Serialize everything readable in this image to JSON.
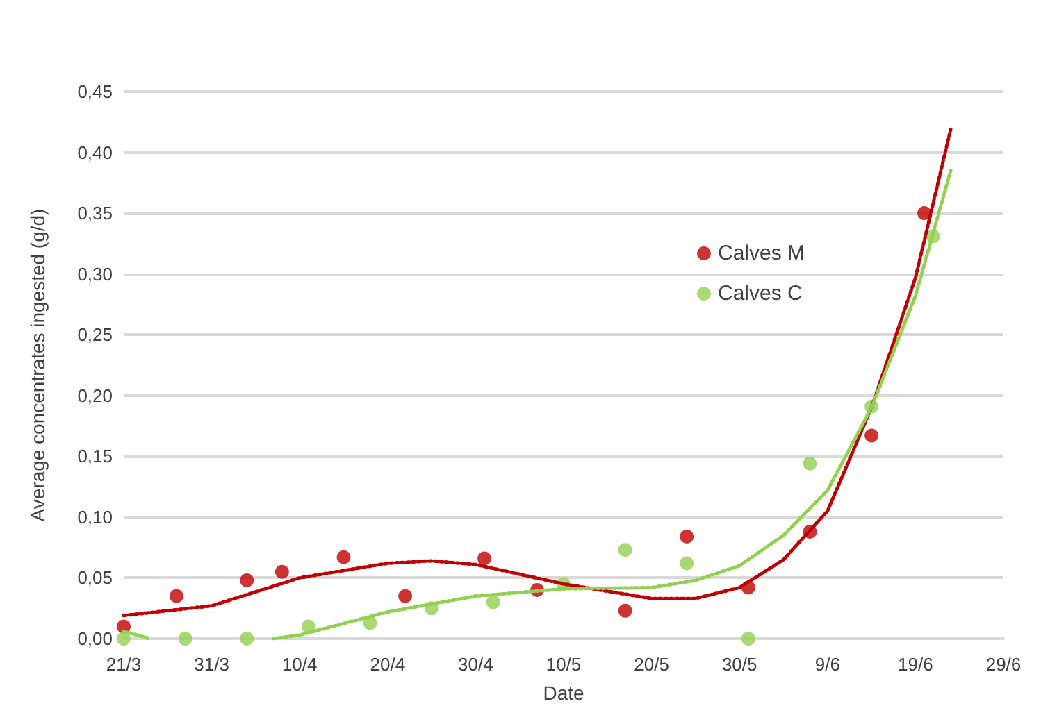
{
  "chart_data": {
    "type": "scatter",
    "xlabel": "Date",
    "ylabel": "Average concentrates ingested (g/d)",
    "xlim": [
      "--03-21",
      "--06-29"
    ],
    "xticks": [
      {
        "value": "--03-21",
        "label": "21/3"
      },
      {
        "value": "--03-31",
        "label": "31/3"
      },
      {
        "value": "--04-10",
        "label": "10/4"
      },
      {
        "value": "--04-20",
        "label": "20/4"
      },
      {
        "value": "--04-30",
        "label": "30/4"
      },
      {
        "value": "--05-10",
        "label": "10/5"
      },
      {
        "value": "--05-20",
        "label": "20/5"
      },
      {
        "value": "--05-30",
        "label": "30/5"
      },
      {
        "value": "--06-09",
        "label": "9/6"
      },
      {
        "value": "--06-19",
        "label": "19/6"
      },
      {
        "value": "--06-29",
        "label": "29/6"
      }
    ],
    "ylim": [
      0,
      0.45
    ],
    "yticks": [
      {
        "value": 0,
        "label": "0,00"
      },
      {
        "value": 0.05,
        "label": "0,05"
      },
      {
        "value": 0.1,
        "label": "0,10"
      },
      {
        "value": 0.15,
        "label": "0,15"
      },
      {
        "value": 0.2,
        "label": "0,20"
      },
      {
        "value": 0.25,
        "label": "0,25"
      },
      {
        "value": 0.3,
        "label": "0,30"
      },
      {
        "value": 0.35,
        "label": "0,35"
      },
      {
        "value": 0.4,
        "label": "0,40"
      },
      {
        "value": 0.45,
        "label": "0,45"
      }
    ],
    "grid": "y",
    "legend": "top right",
    "marker": "circle",
    "series": [
      {
        "name": "Calves M",
        "color": "#c00000",
        "x": [
          "--03-21",
          "--03-27",
          "--04-04",
          "--04-08",
          "--04-15",
          "--04-22",
          "--05-01",
          "--05-07",
          "--05-17",
          "--05-24",
          "--05-31",
          "--06-07",
          "--06-14",
          "--06-20"
        ],
        "values": [
          0.01,
          0.035,
          0.048,
          0.055,
          0.067,
          0.035,
          0.066,
          0.04,
          0.023,
          0.084,
          0.042,
          0.088,
          0.167,
          0.35
        ]
      },
      {
        "name": "Calves C",
        "color": "#92d050",
        "x": [
          "--03-21",
          "--03-28",
          "--04-04",
          "--04-11",
          "--04-18",
          "--04-25",
          "--05-02",
          "--05-10",
          "--05-17",
          "--05-24",
          "--05-31",
          "--06-07",
          "--06-14",
          "--06-21"
        ],
        "values": [
          0,
          0,
          0,
          0.01,
          0.013,
          0.025,
          0.03,
          0.045,
          0.073,
          0.062,
          0,
          0.144,
          0.191,
          0.331
        ]
      },
      {
        "type": "line",
        "color": "#c00000",
        "line_style": "dotted",
        "marker": "none",
        "x": [
          "--03-21",
          "--03-31",
          "--04-10",
          "--04-20",
          "--04-25",
          "--04-30",
          "--05-10",
          "--05-20",
          "--05-25",
          "--05-30",
          "--06-04",
          "--06-09",
          "--06-14",
          "--06-19",
          "--06-23"
        ],
        "values": [
          0.019,
          0.027,
          0.05,
          0.062,
          0.064,
          0.061,
          0.045,
          0.033,
          0.033,
          0.042,
          0.065,
          0.105,
          0.19,
          0.297,
          0.419
        ]
      },
      {
        "type": "line",
        "color": "#92d050",
        "line_style": "dotted",
        "marker": "none",
        "x": [
          "--03-21",
          "--03-24",
          "--04-01",
          "--04-07",
          "--04-10",
          "--04-20",
          "--04-30",
          "--05-10",
          "--05-20",
          "--05-25",
          "--05-30",
          "--06-04",
          "--06-09",
          "--06-14",
          "--06-19",
          "--06-23"
        ],
        "values": [
          0.006,
          0,
          null,
          0,
          0.003,
          0.022,
          0.035,
          0.041,
          0.042,
          0.048,
          0.06,
          0.085,
          0.122,
          0.19,
          0.282,
          0.385
        ]
      }
    ]
  }
}
